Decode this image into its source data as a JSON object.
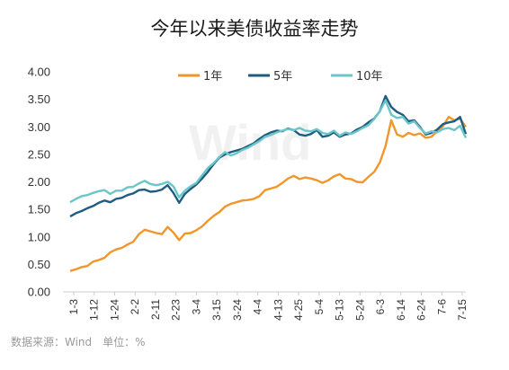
{
  "source_note": "数据来源：Wind　单位：%",
  "watermark": "Wind",
  "colors": {
    "series_1y": "#F0962B",
    "series_5y": "#1F5C82",
    "series_10y": "#6CC6C9",
    "axis": "#cccccc"
  },
  "chart_data": {
    "type": "line",
    "title": "今年以来美债收益率走势",
    "xlabel": "",
    "ylabel": "",
    "ylim": [
      0,
      4
    ],
    "yticks": [
      "0.00",
      "0.50",
      "1.00",
      "1.50",
      "2.00",
      "2.50",
      "3.00",
      "3.50",
      "4.00"
    ],
    "grid": false,
    "legend_position": "top",
    "x_tick_labels": [
      "1-3",
      "1-12",
      "1-24",
      "2-2",
      "2-11",
      "2-23",
      "3-4",
      "3-15",
      "3-24",
      "4-4",
      "4-13",
      "4-25",
      "5-4",
      "5-13",
      "5-24",
      "6-3",
      "6-14",
      "6-24",
      "7-6",
      "7-15"
    ],
    "series": [
      {
        "name": "1年",
        "color": "#F0962B",
        "values": [
          0.38,
          0.41,
          0.45,
          0.47,
          0.55,
          0.58,
          0.62,
          0.72,
          0.77,
          0.8,
          0.86,
          0.91,
          1.05,
          1.13,
          1.1,
          1.07,
          1.05,
          1.18,
          1.08,
          0.94,
          1.06,
          1.07,
          1.12,
          1.19,
          1.29,
          1.38,
          1.45,
          1.55,
          1.6,
          1.63,
          1.66,
          1.67,
          1.69,
          1.74,
          1.85,
          1.88,
          1.91,
          1.98,
          2.06,
          2.11,
          2.05,
          2.08,
          2.06,
          2.03,
          1.98,
          2.03,
          2.1,
          2.14,
          2.06,
          2.05,
          2.0,
          1.99,
          2.09,
          2.18,
          2.35,
          2.65,
          3.12,
          2.86,
          2.82,
          2.89,
          2.85,
          2.88,
          2.8,
          2.82,
          2.92,
          3.01,
          3.18,
          3.12,
          3.15,
          3.0
        ]
      },
      {
        "name": "5年",
        "color": "#1F5C82",
        "values": [
          1.37,
          1.43,
          1.47,
          1.52,
          1.56,
          1.62,
          1.66,
          1.63,
          1.69,
          1.71,
          1.76,
          1.79,
          1.85,
          1.86,
          1.82,
          1.83,
          1.86,
          1.94,
          1.8,
          1.62,
          1.78,
          1.87,
          1.95,
          2.06,
          2.18,
          2.32,
          2.44,
          2.5,
          2.54,
          2.57,
          2.6,
          2.65,
          2.7,
          2.78,
          2.85,
          2.9,
          2.93,
          2.92,
          2.97,
          2.94,
          2.86,
          2.84,
          2.87,
          2.94,
          2.82,
          2.84,
          2.9,
          2.82,
          2.86,
          2.88,
          2.95,
          3.0,
          3.08,
          3.15,
          3.28,
          3.56,
          3.36,
          3.27,
          3.22,
          3.1,
          3.12,
          3.0,
          2.86,
          2.89,
          2.95,
          3.05,
          3.08,
          3.1,
          3.18,
          2.87
        ]
      },
      {
        "name": "10年",
        "color": "#6CC6C9",
        "values": [
          1.63,
          1.69,
          1.74,
          1.76,
          1.8,
          1.83,
          1.85,
          1.78,
          1.84,
          1.84,
          1.9,
          1.91,
          1.97,
          2.02,
          1.96,
          1.94,
          1.96,
          2.0,
          1.92,
          1.72,
          1.84,
          1.92,
          1.98,
          2.12,
          2.25,
          2.34,
          2.45,
          2.54,
          2.48,
          2.52,
          2.58,
          2.62,
          2.68,
          2.74,
          2.82,
          2.85,
          2.9,
          2.93,
          2.96,
          2.94,
          2.98,
          2.93,
          2.92,
          2.96,
          2.89,
          2.87,
          2.93,
          2.84,
          2.9,
          2.87,
          2.92,
          2.98,
          3.03,
          3.14,
          3.28,
          3.48,
          3.22,
          3.16,
          3.18,
          3.06,
          3.1,
          2.98,
          2.88,
          2.92,
          2.9,
          2.96,
          2.98,
          2.94,
          3.02,
          2.8
        ]
      }
    ]
  }
}
